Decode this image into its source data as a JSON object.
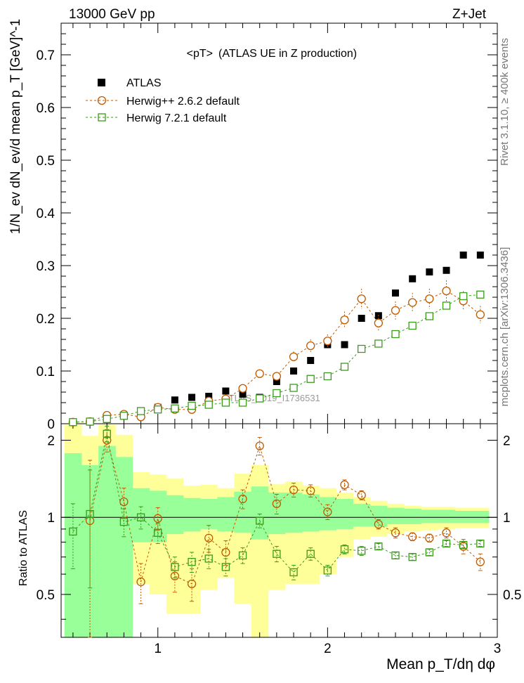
{
  "header": {
    "energy_label": "13000 GeV pp",
    "process_label": "Z+Jet",
    "plot_title": "<pT>",
    "plot_subtitle": "(ATLAS UE in Z production)",
    "watermark": "ATLAS_2019_I1736531",
    "side_label_top": "Rivet 3.1.10, ≥ 400k events",
    "side_label_bottom": "mcplots.cern.ch [arXiv:1306.3436]"
  },
  "legend": {
    "atlas": "ATLAS",
    "herwigpp": "Herwig++ 2.6.2 default",
    "herwig7": "Herwig 7.2.1 default"
  },
  "colors": {
    "atlas": "#000000",
    "herwigpp": "#c05a00",
    "herwig7": "#3a9a1a",
    "band_inner": "#99ff99",
    "band_outer": "#ffff99"
  },
  "chart_data": [
    {
      "type": "scatter",
      "name": "main",
      "ylabel": "1/N_ev dN_ev/d mean p_T [GeV]^-1",
      "xlim": [
        0.43,
        3.0
      ],
      "ylim": [
        0,
        0.76
      ],
      "yticks": [
        0,
        0.1,
        0.2,
        0.3,
        0.4,
        0.5,
        0.6,
        0.7
      ],
      "ytick_labels": [
        "0",
        "0.1",
        "0.2",
        "0.3",
        "0.4",
        "0.5",
        "0.6",
        "0.7"
      ],
      "x": [
        0.5,
        0.6,
        0.7,
        0.8,
        0.9,
        1.0,
        1.1,
        1.2,
        1.3,
        1.4,
        1.5,
        1.6,
        1.7,
        1.8,
        1.9,
        2.0,
        2.1,
        2.2,
        2.3,
        2.4,
        2.5,
        2.6,
        2.7,
        2.8,
        2.9
      ],
      "series": [
        {
          "name": "ATLAS",
          "marker": "filled-square",
          "values": [
            0.003,
            0.004,
            0.008,
            0.016,
            0.024,
            0.031,
            0.045,
            0.05,
            0.052,
            0.062,
            0.056,
            0.05,
            0.08,
            0.1,
            0.12,
            0.15,
            0.15,
            0.2,
            0.205,
            0.248,
            0.275,
            0.288,
            0.291,
            0.32,
            0.32
          ]
        },
        {
          "name": "Herwig++ 2.6.2 default",
          "marker": "open-circle",
          "values": [
            0.003,
            0.004,
            0.016,
            0.018,
            0.013,
            0.031,
            0.027,
            0.027,
            0.043,
            0.047,
            0.067,
            0.095,
            0.09,
            0.127,
            0.148,
            0.157,
            0.197,
            0.237,
            0.191,
            0.215,
            0.23,
            0.237,
            0.252,
            0.233,
            0.207
          ]
        },
        {
          "name": "Herwig 7.2.1 default",
          "marker": "open-square",
          "values": [
            0.003,
            0.004,
            0.009,
            0.015,
            0.024,
            0.027,
            0.029,
            0.034,
            0.036,
            0.04,
            0.04,
            0.048,
            0.058,
            0.068,
            0.085,
            0.09,
            0.108,
            0.142,
            0.152,
            0.17,
            0.186,
            0.204,
            0.224,
            0.242,
            0.245
          ]
        }
      ]
    },
    {
      "type": "scatter",
      "name": "ratio",
      "ylabel": "Ratio to ATLAS",
      "xlabel": "Mean p_T/dη dφ",
      "xlim": [
        0.43,
        3.0
      ],
      "ylim": [
        0.34,
        2.32
      ],
      "yscale": "log",
      "yticks": [
        0.5,
        1,
        2
      ],
      "ytick_labels": [
        "0.5",
        "1",
        "2"
      ],
      "xticks": [
        1,
        2,
        3
      ],
      "xtick_labels": [
        "1",
        "2",
        "3"
      ],
      "x": [
        0.5,
        0.6,
        0.7,
        0.8,
        0.9,
        1.0,
        1.1,
        1.2,
        1.3,
        1.4,
        1.5,
        1.6,
        1.7,
        1.8,
        1.9,
        2.0,
        2.1,
        2.2,
        2.3,
        2.4,
        2.5,
        2.6,
        2.7,
        2.8,
        2.9
      ],
      "band_edges": [
        0.45,
        0.55,
        0.65,
        0.75,
        0.85,
        0.95,
        1.05,
        1.15,
        1.25,
        1.35,
        1.45,
        1.55,
        1.65,
        1.75,
        1.85,
        1.95,
        2.05,
        2.15,
        2.25,
        2.35,
        2.45,
        2.55,
        2.65,
        2.75,
        2.85,
        2.95
      ],
      "band_inner": [
        [
          0.34,
          1.78
        ],
        [
          0.34,
          1.6
        ],
        [
          0.34,
          1.9
        ],
        [
          0.34,
          1.72
        ],
        [
          0.8,
          1.3
        ],
        [
          0.8,
          1.27
        ],
        [
          0.86,
          1.22
        ],
        [
          0.88,
          1.19
        ],
        [
          0.9,
          1.18
        ],
        [
          0.88,
          1.2
        ],
        [
          0.87,
          1.26
        ],
        [
          0.82,
          1.32
        ],
        [
          0.86,
          1.25
        ],
        [
          0.87,
          1.25
        ],
        [
          0.88,
          1.23
        ],
        [
          0.89,
          1.2
        ],
        [
          0.9,
          1.18
        ],
        [
          0.92,
          1.13
        ],
        [
          0.92,
          1.11
        ],
        [
          0.94,
          1.09
        ],
        [
          0.94,
          1.08
        ],
        [
          0.95,
          1.07
        ],
        [
          0.95,
          1.07
        ],
        [
          0.95,
          1.06
        ],
        [
          0.95,
          1.06
        ]
      ],
      "band_outer": [
        [
          0.34,
          2.3
        ],
        [
          0.34,
          2.08
        ],
        [
          0.34,
          2.3
        ],
        [
          0.34,
          2.1
        ],
        [
          0.55,
          1.5
        ],
        [
          0.5,
          1.47
        ],
        [
          0.42,
          1.42
        ],
        [
          0.42,
          1.33
        ],
        [
          0.52,
          1.34
        ],
        [
          0.58,
          1.3
        ],
        [
          0.46,
          1.48
        ],
        [
          0.34,
          1.6
        ],
        [
          0.52,
          1.35
        ],
        [
          0.55,
          1.38
        ],
        [
          0.55,
          1.33
        ],
        [
          0.6,
          1.3
        ],
        [
          0.7,
          1.25
        ],
        [
          0.82,
          1.2
        ],
        [
          0.84,
          1.16
        ],
        [
          0.86,
          1.13
        ],
        [
          0.88,
          1.11
        ],
        [
          0.89,
          1.1
        ],
        [
          0.9,
          1.1
        ],
        [
          0.91,
          1.09
        ],
        [
          0.91,
          1.09
        ]
      ],
      "series": [
        {
          "name": "Herwig++ 2.6.2 default",
          "values": [
            null,
            0.97,
            2.0,
            1.15,
            0.56,
            0.99,
            0.59,
            0.55,
            0.83,
            0.73,
            1.18,
            1.9,
            1.13,
            1.28,
            1.27,
            1.05,
            1.34,
            1.22,
            0.94,
            0.87,
            0.84,
            0.83,
            0.87,
            0.77,
            0.67
          ],
          "err": [
            0,
            0.7,
            0.2,
            0.15,
            0.1,
            0.1,
            0.08,
            0.08,
            0.1,
            0.08,
            0.1,
            0.15,
            0.1,
            0.08,
            0.07,
            0.07,
            0.06,
            0.05,
            0.04,
            0.04,
            0.03,
            0.03,
            0.04,
            0.05,
            0.05
          ]
        },
        {
          "name": "Herwig 7.2.1 default",
          "values": [
            0.88,
            1.03,
            2.12,
            0.96,
            1.0,
            0.87,
            0.64,
            0.67,
            0.69,
            0.64,
            0.71,
            0.97,
            0.72,
            0.61,
            0.72,
            0.62,
            0.75,
            0.74,
            0.77,
            0.71,
            0.7,
            0.73,
            0.79,
            0.78,
            0.79
          ],
          "err": [
            0.25,
            0.5,
            0.15,
            0.12,
            0.1,
            0.08,
            0.06,
            0.06,
            0.06,
            0.05,
            0.05,
            0.06,
            0.05,
            0.04,
            0.04,
            0.03,
            0.03,
            0.03,
            0.02,
            0.02,
            0.02,
            0.02,
            0.02,
            0.02,
            0.02
          ]
        }
      ]
    }
  ]
}
